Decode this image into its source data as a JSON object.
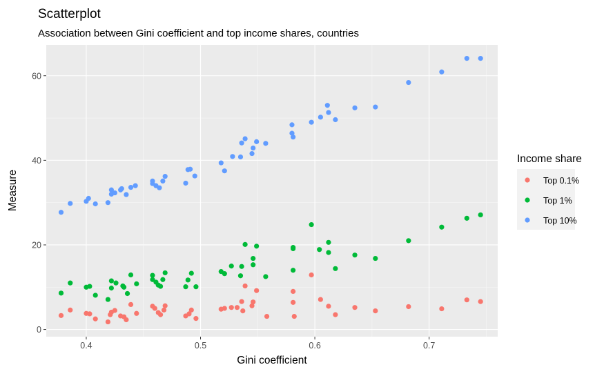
{
  "chart_data": {
    "type": "scatter",
    "title": "Scatterplot",
    "subtitle": "Association between Gini coefficient and top income shares,  countries",
    "xlabel": "Gini coefficient",
    "ylabel": "Measure",
    "xlim": [
      0.365,
      0.76
    ],
    "ylim": [
      -1.7,
      67.3
    ],
    "x_ticks": [
      0.4,
      0.5,
      0.6,
      0.7
    ],
    "x_tick_labels": [
      "0.4",
      "0.5",
      "0.6",
      "0.7"
    ],
    "x_minor_ticks": [
      0.45,
      0.55,
      0.65,
      0.75
    ],
    "y_ticks": [
      0,
      20,
      40,
      60
    ],
    "y_tick_labels": [
      "0",
      "20",
      "40",
      "60"
    ],
    "y_minor_ticks": [
      10,
      30,
      50
    ],
    "grid": true,
    "panel_color": "#ebebeb",
    "grid_color": "#ffffff",
    "legend": {
      "title": "Income share",
      "position": "right"
    },
    "series": [
      {
        "name": "Top 0.1%",
        "color": "#f8766d",
        "points": [
          [
            0.378,
            3.3
          ],
          [
            0.386,
            4.6
          ],
          [
            0.4,
            3.8
          ],
          [
            0.403,
            3.7
          ],
          [
            0.408,
            2.5
          ],
          [
            0.419,
            1.8
          ],
          [
            0.421,
            3.5
          ],
          [
            0.422,
            4.1
          ],
          [
            0.425,
            4.5
          ],
          [
            0.43,
            3.2
          ],
          [
            0.433,
            3.0
          ],
          [
            0.435,
            2.3
          ],
          [
            0.439,
            5.9
          ],
          [
            0.444,
            3.8
          ],
          [
            0.458,
            5.5
          ],
          [
            0.46,
            5.0
          ],
          [
            0.463,
            4.0
          ],
          [
            0.465,
            3.5
          ],
          [
            0.468,
            4.6
          ],
          [
            0.469,
            5.6
          ],
          [
            0.487,
            3.2
          ],
          [
            0.49,
            3.7
          ],
          [
            0.492,
            4.6
          ],
          [
            0.496,
            2.6
          ],
          [
            0.518,
            4.8
          ],
          [
            0.521,
            5.0
          ],
          [
            0.527,
            5.2
          ],
          [
            0.532,
            5.2
          ],
          [
            0.536,
            6.6
          ],
          [
            0.537,
            4.4
          ],
          [
            0.539,
            10.3
          ],
          [
            0.545,
            5.6
          ],
          [
            0.546,
            6.5
          ],
          [
            0.549,
            9.2
          ],
          [
            0.558,
            3.1
          ],
          [
            0.581,
            9.0
          ],
          [
            0.581,
            6.4
          ],
          [
            0.582,
            3.1
          ],
          [
            0.597,
            12.9
          ],
          [
            0.605,
            7.1
          ],
          [
            0.612,
            5.5
          ],
          [
            0.618,
            3.5
          ],
          [
            0.635,
            5.2
          ],
          [
            0.653,
            4.4
          ],
          [
            0.682,
            5.4
          ],
          [
            0.711,
            4.9
          ],
          [
            0.733,
            7.0
          ],
          [
            0.745,
            6.6
          ]
        ]
      },
      {
        "name": "Top 1%",
        "color": "#00ba38",
        "points": [
          [
            0.378,
            8.6
          ],
          [
            0.386,
            11.0
          ],
          [
            0.4,
            10.0
          ],
          [
            0.403,
            10.2
          ],
          [
            0.408,
            8.1
          ],
          [
            0.419,
            7.1
          ],
          [
            0.422,
            11.5
          ],
          [
            0.422,
            9.8
          ],
          [
            0.426,
            11.0
          ],
          [
            0.432,
            10.3
          ],
          [
            0.433,
            10.0
          ],
          [
            0.436,
            8.5
          ],
          [
            0.439,
            12.9
          ],
          [
            0.444,
            10.8
          ],
          [
            0.458,
            12.8
          ],
          [
            0.458,
            11.8
          ],
          [
            0.461,
            11.2
          ],
          [
            0.463,
            10.5
          ],
          [
            0.465,
            10.2
          ],
          [
            0.467,
            11.8
          ],
          [
            0.469,
            13.4
          ],
          [
            0.487,
            10.1
          ],
          [
            0.489,
            11.7
          ],
          [
            0.492,
            13.3
          ],
          [
            0.496,
            10.1
          ],
          [
            0.518,
            13.7
          ],
          [
            0.521,
            13.2
          ],
          [
            0.527,
            15.0
          ],
          [
            0.536,
            14.9
          ],
          [
            0.535,
            12.7
          ],
          [
            0.539,
            20.1
          ],
          [
            0.546,
            16.8
          ],
          [
            0.546,
            15.3
          ],
          [
            0.549,
            19.7
          ],
          [
            0.557,
            12.5
          ],
          [
            0.581,
            19.4
          ],
          [
            0.581,
            19.1
          ],
          [
            0.581,
            14.0
          ],
          [
            0.597,
            24.8
          ],
          [
            0.604,
            18.9
          ],
          [
            0.612,
            20.6
          ],
          [
            0.612,
            18.2
          ],
          [
            0.618,
            14.4
          ],
          [
            0.635,
            17.6
          ],
          [
            0.653,
            16.8
          ],
          [
            0.682,
            21.0
          ],
          [
            0.711,
            24.2
          ],
          [
            0.733,
            26.3
          ],
          [
            0.745,
            27.1
          ]
        ]
      },
      {
        "name": "Top 10%",
        "color": "#619cff",
        "points": [
          [
            0.378,
            27.7
          ],
          [
            0.386,
            29.8
          ],
          [
            0.4,
            30.3
          ],
          [
            0.402,
            31.0
          ],
          [
            0.408,
            29.7
          ],
          [
            0.419,
            30.0
          ],
          [
            0.422,
            33.0
          ],
          [
            0.422,
            32.0
          ],
          [
            0.425,
            32.3
          ],
          [
            0.43,
            33.0
          ],
          [
            0.431,
            33.3
          ],
          [
            0.435,
            31.9
          ],
          [
            0.439,
            33.6
          ],
          [
            0.443,
            34.0
          ],
          [
            0.458,
            35.1
          ],
          [
            0.458,
            34.5
          ],
          [
            0.461,
            34.0
          ],
          [
            0.464,
            33.5
          ],
          [
            0.467,
            35.1
          ],
          [
            0.469,
            36.2
          ],
          [
            0.487,
            34.6
          ],
          [
            0.489,
            37.8
          ],
          [
            0.491,
            37.9
          ],
          [
            0.495,
            36.3
          ],
          [
            0.518,
            39.4
          ],
          [
            0.521,
            37.5
          ],
          [
            0.528,
            40.9
          ],
          [
            0.535,
            40.8
          ],
          [
            0.536,
            44.1
          ],
          [
            0.539,
            45.1
          ],
          [
            0.545,
            41.6
          ],
          [
            0.546,
            42.9
          ],
          [
            0.549,
            44.4
          ],
          [
            0.557,
            44.0
          ],
          [
            0.58,
            48.4
          ],
          [
            0.58,
            46.4
          ],
          [
            0.581,
            45.5
          ],
          [
            0.597,
            49.0
          ],
          [
            0.605,
            50.2
          ],
          [
            0.611,
            53.0
          ],
          [
            0.612,
            51.3
          ],
          [
            0.618,
            49.6
          ],
          [
            0.635,
            52.4
          ],
          [
            0.653,
            52.6
          ],
          [
            0.682,
            58.4
          ],
          [
            0.711,
            60.9
          ],
          [
            0.733,
            64.1
          ],
          [
            0.745,
            64.1
          ]
        ]
      }
    ]
  }
}
